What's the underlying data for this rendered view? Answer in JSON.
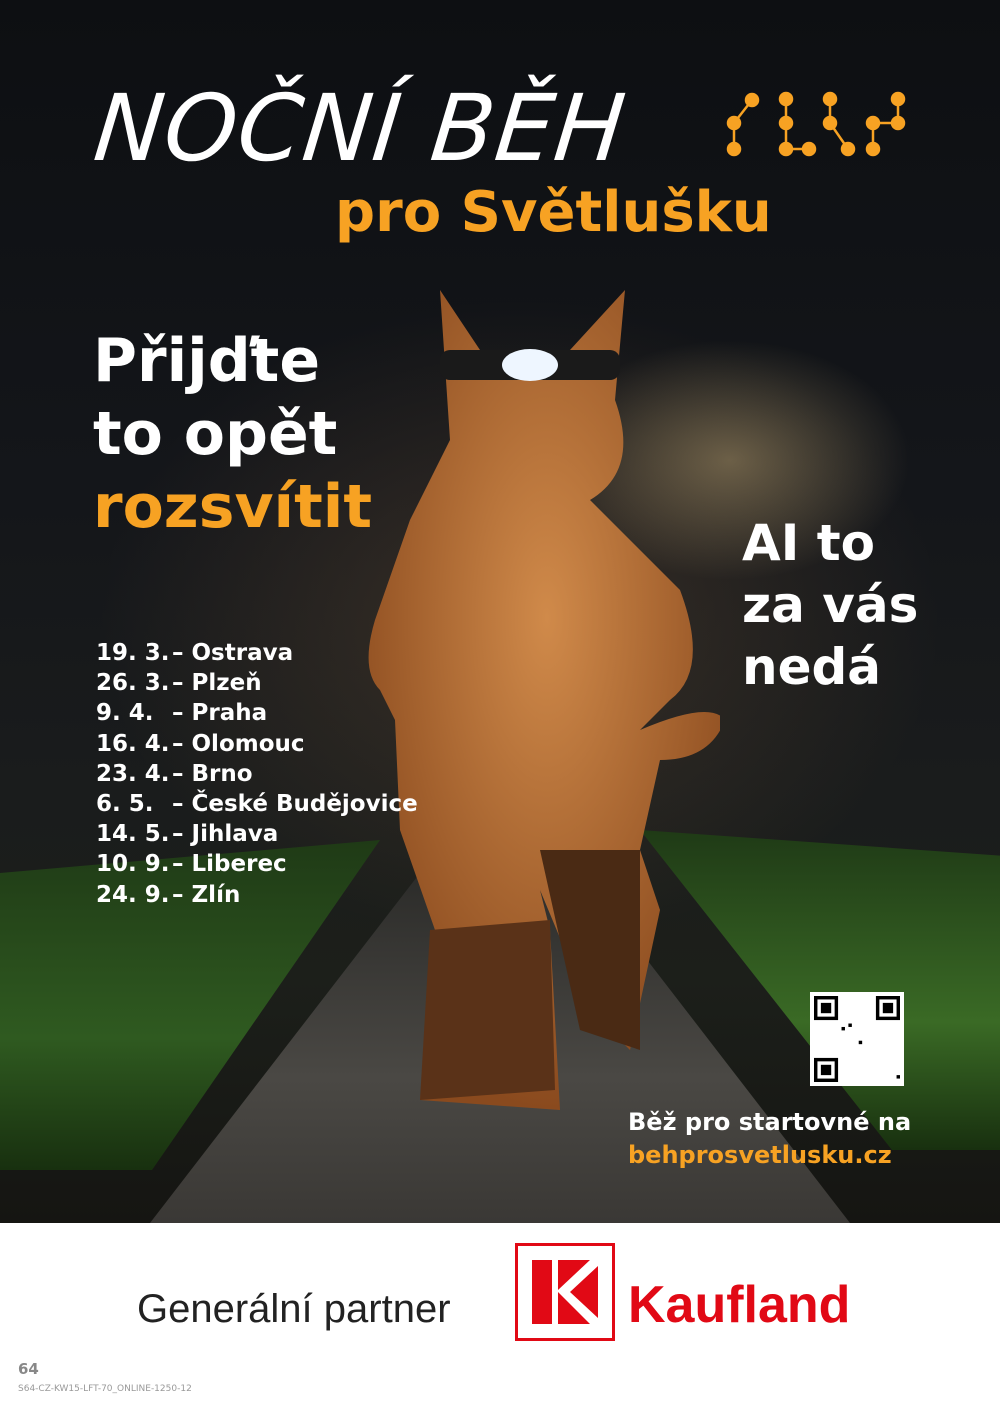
{
  "title": "NOČNÍ BĚH",
  "subtitle": "pro Světlušku",
  "headline": {
    "line1": "Přijďte",
    "line2": "to opět",
    "line3": "rozsvítit"
  },
  "slogan": {
    "line1": "AI to",
    "line2": "za vás",
    "line3": "nedá"
  },
  "dates": [
    {
      "date": "19. 3.",
      "city": "– Ostrava"
    },
    {
      "date": "26. 3.",
      "city": "– Plzeň"
    },
    {
      "date": "9. 4.",
      "city": "– Praha"
    },
    {
      "date": "16. 4.",
      "city": "– Olomouc"
    },
    {
      "date": "23. 4.",
      "city": "– Brno"
    },
    {
      "date": "6. 5.",
      "city": "– České Budějovice"
    },
    {
      "date": "14. 5.",
      "city": "– Jihlava"
    },
    {
      "date": "10. 9.",
      "city": "– Liberec"
    },
    {
      "date": "24. 9.",
      "city": "– Zlín"
    }
  ],
  "cta": {
    "text": "Běž pro startovné na",
    "url": "behprosvetlusku.cz"
  },
  "footer": {
    "partner_label": "Generální partner",
    "brand": "Kaufland",
    "page_number": "64",
    "code": "S64-CZ-KW15-LFT-70_ONLINE-1250-12"
  },
  "colors": {
    "accent": "#f7a223",
    "brand": "#e10915"
  },
  "icons": {
    "logo": "svetluska-dots-logo",
    "qr": "qr-code"
  }
}
